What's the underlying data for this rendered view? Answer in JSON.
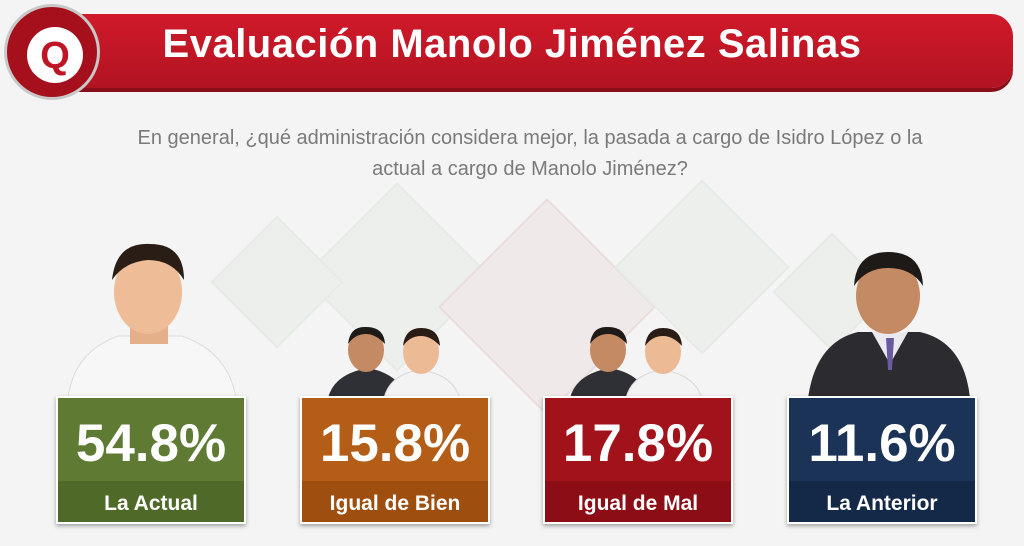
{
  "header": {
    "logo_letter": "Q",
    "title": "Evaluación Manolo Jiménez Salinas"
  },
  "question": {
    "line1": "En general, ¿qué administración considera mejor, la pasada a cargo de Isidro López o la",
    "line2": "actual a cargo de Manolo Jiménez?"
  },
  "colors": {
    "banner": "#c8182a",
    "la_actual": "#5e7a33",
    "igual_de_bien": "#b35d16",
    "igual_de_mal": "#a1121a",
    "la_anterior": "#1c3358"
  },
  "chart_data": {
    "type": "bar",
    "title": "Evaluación Manolo Jiménez Salinas",
    "categories": [
      "La Actual",
      "Igual de Bien",
      "Igual de Mal",
      "La Anterior"
    ],
    "values": [
      54.8,
      15.8,
      17.8,
      11.6
    ],
    "value_labels": [
      "54.8%",
      "15.8%",
      "17.8%",
      "11.6%"
    ],
    "unit": "%"
  }
}
